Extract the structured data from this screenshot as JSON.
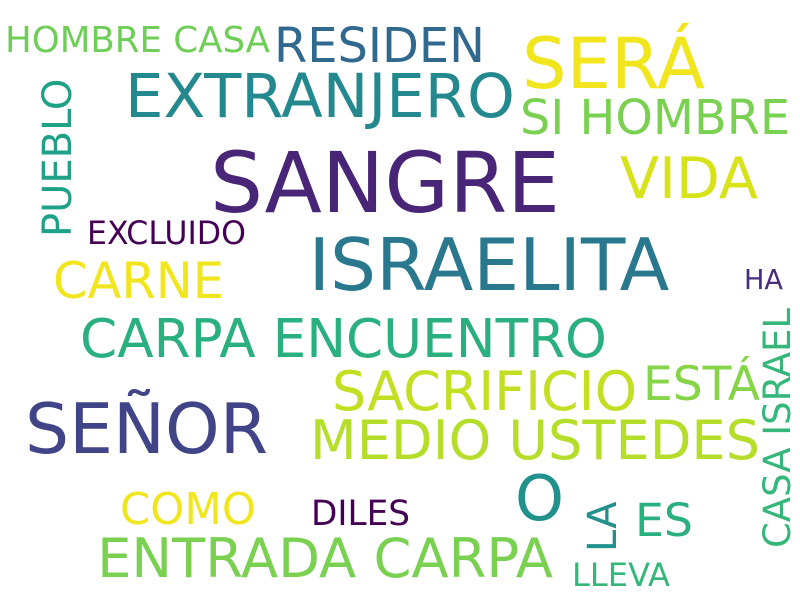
{
  "words": [
    {
      "text": "SANGRE",
      "color": "#482576",
      "vertical": false
    },
    {
      "text": "SEÑOR",
      "color": "#414487",
      "vertical": false
    },
    {
      "text": "ISRAELITA",
      "color": "#2a788e",
      "vertical": false
    },
    {
      "text": "EXTRANJERO",
      "color": "#23898e",
      "vertical": false
    },
    {
      "text": "SERÁ",
      "color": "#f1e51d",
      "vertical": false
    },
    {
      "text": "O",
      "color": "#21918c",
      "vertical": false
    },
    {
      "text": "CARPA ENCUENTRO",
      "color": "#2ab07f",
      "vertical": false
    },
    {
      "text": "MEDIO USTEDES",
      "color": "#b5de2b",
      "vertical": false
    },
    {
      "text": "ENTRADA CARPA",
      "color": "#7ad151",
      "vertical": false
    },
    {
      "text": "SACRIFICIO",
      "color": "#c2df23",
      "vertical": false
    },
    {
      "text": "COMO",
      "color": "#f1e51d",
      "vertical": false
    },
    {
      "text": "CARNE",
      "color": "#f1e51d",
      "vertical": false
    },
    {
      "text": "VIDA",
      "color": "#d8e219",
      "vertical": false
    },
    {
      "text": "RESIDEN",
      "color": "#31688e",
      "vertical": false
    },
    {
      "text": "SI HOMBRE",
      "color": "#7ad151",
      "vertical": false
    },
    {
      "text": "PUEBLO",
      "color": "#1fa187",
      "vertical": true
    },
    {
      "text": "CASA ISRAEL",
      "color": "#35b779",
      "vertical": true
    },
    {
      "text": "HOMBRE CASA",
      "color": "#6ece58",
      "vertical": false
    },
    {
      "text": "ESTÁ",
      "color": "#86d549",
      "vertical": false
    },
    {
      "text": "ES",
      "color": "#2ab07f",
      "vertical": false
    },
    {
      "text": "LA",
      "color": "#21918c",
      "vertical": true
    },
    {
      "text": "EXCLUIDO",
      "color": "#440154",
      "vertical": false
    },
    {
      "text": "DILES",
      "color": "#440154",
      "vertical": false
    },
    {
      "text": "HA",
      "color": "#472d7b",
      "vertical": false
    },
    {
      "text": "LLEVA",
      "color": "#35b779",
      "vertical": false
    }
  ]
}
